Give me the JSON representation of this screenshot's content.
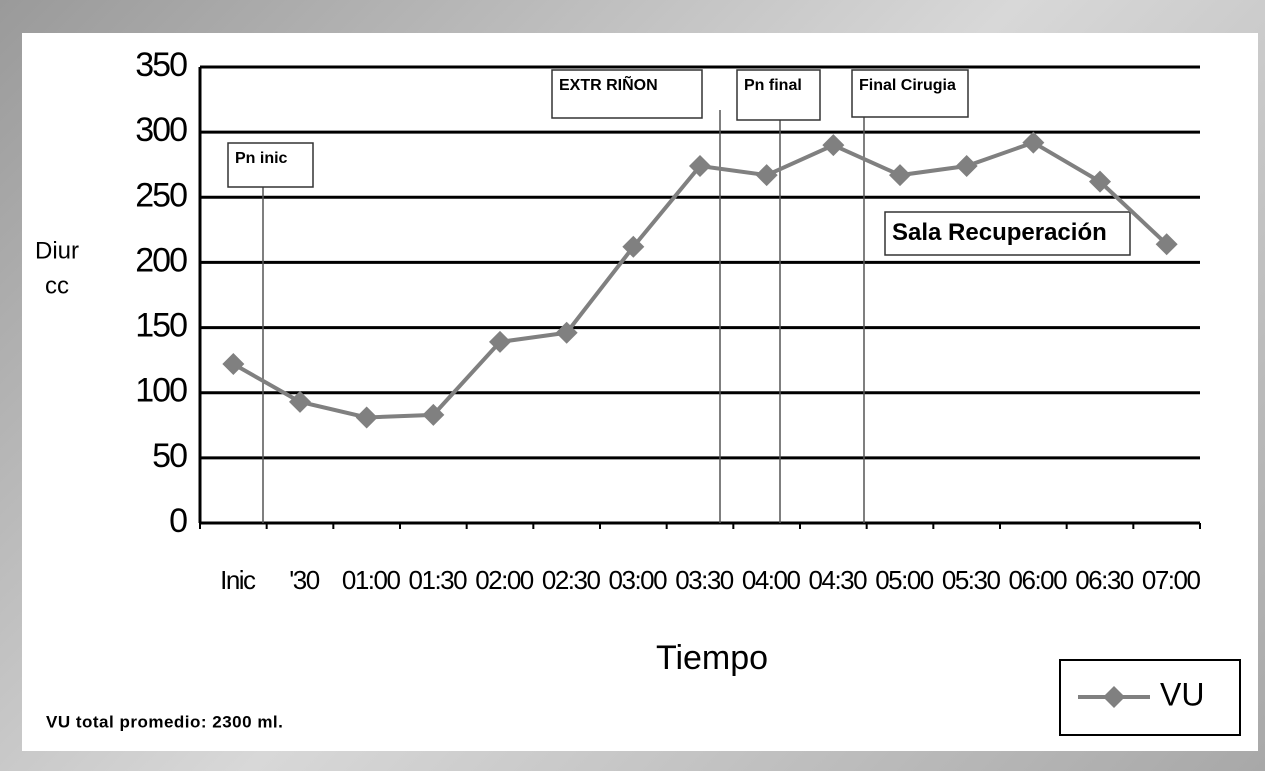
{
  "chart_data": {
    "type": "line",
    "ylabel": [
      "Diur",
      "cc"
    ],
    "xlabel": "Tiempo",
    "categories": [
      "Inic",
      "'30",
      "01:00",
      "01:30",
      "02:00",
      "02:30",
      "03:00",
      "03:30",
      "04:00",
      "04:30",
      "05:00",
      "05:30",
      "06:00",
      "06:30",
      "07:00"
    ],
    "series": [
      {
        "name": "VU",
        "color": "#808080",
        "values": [
          122,
          93,
          81,
          83,
          139,
          146,
          212,
          274,
          267,
          290,
          267,
          274,
          292,
          262,
          214
        ]
      }
    ],
    "ylim": [
      0,
      350
    ],
    "yticks": [
      0,
      50,
      100,
      150,
      200,
      250,
      300,
      350
    ],
    "grid": true,
    "legend": "bottom-right",
    "annotations": [
      "Pn inic",
      "EXTR RIÑON",
      "Pn final",
      "Final Cirugia",
      "Sala Recuperación"
    ],
    "footnote": "VU total promedio: 2300 ml."
  }
}
